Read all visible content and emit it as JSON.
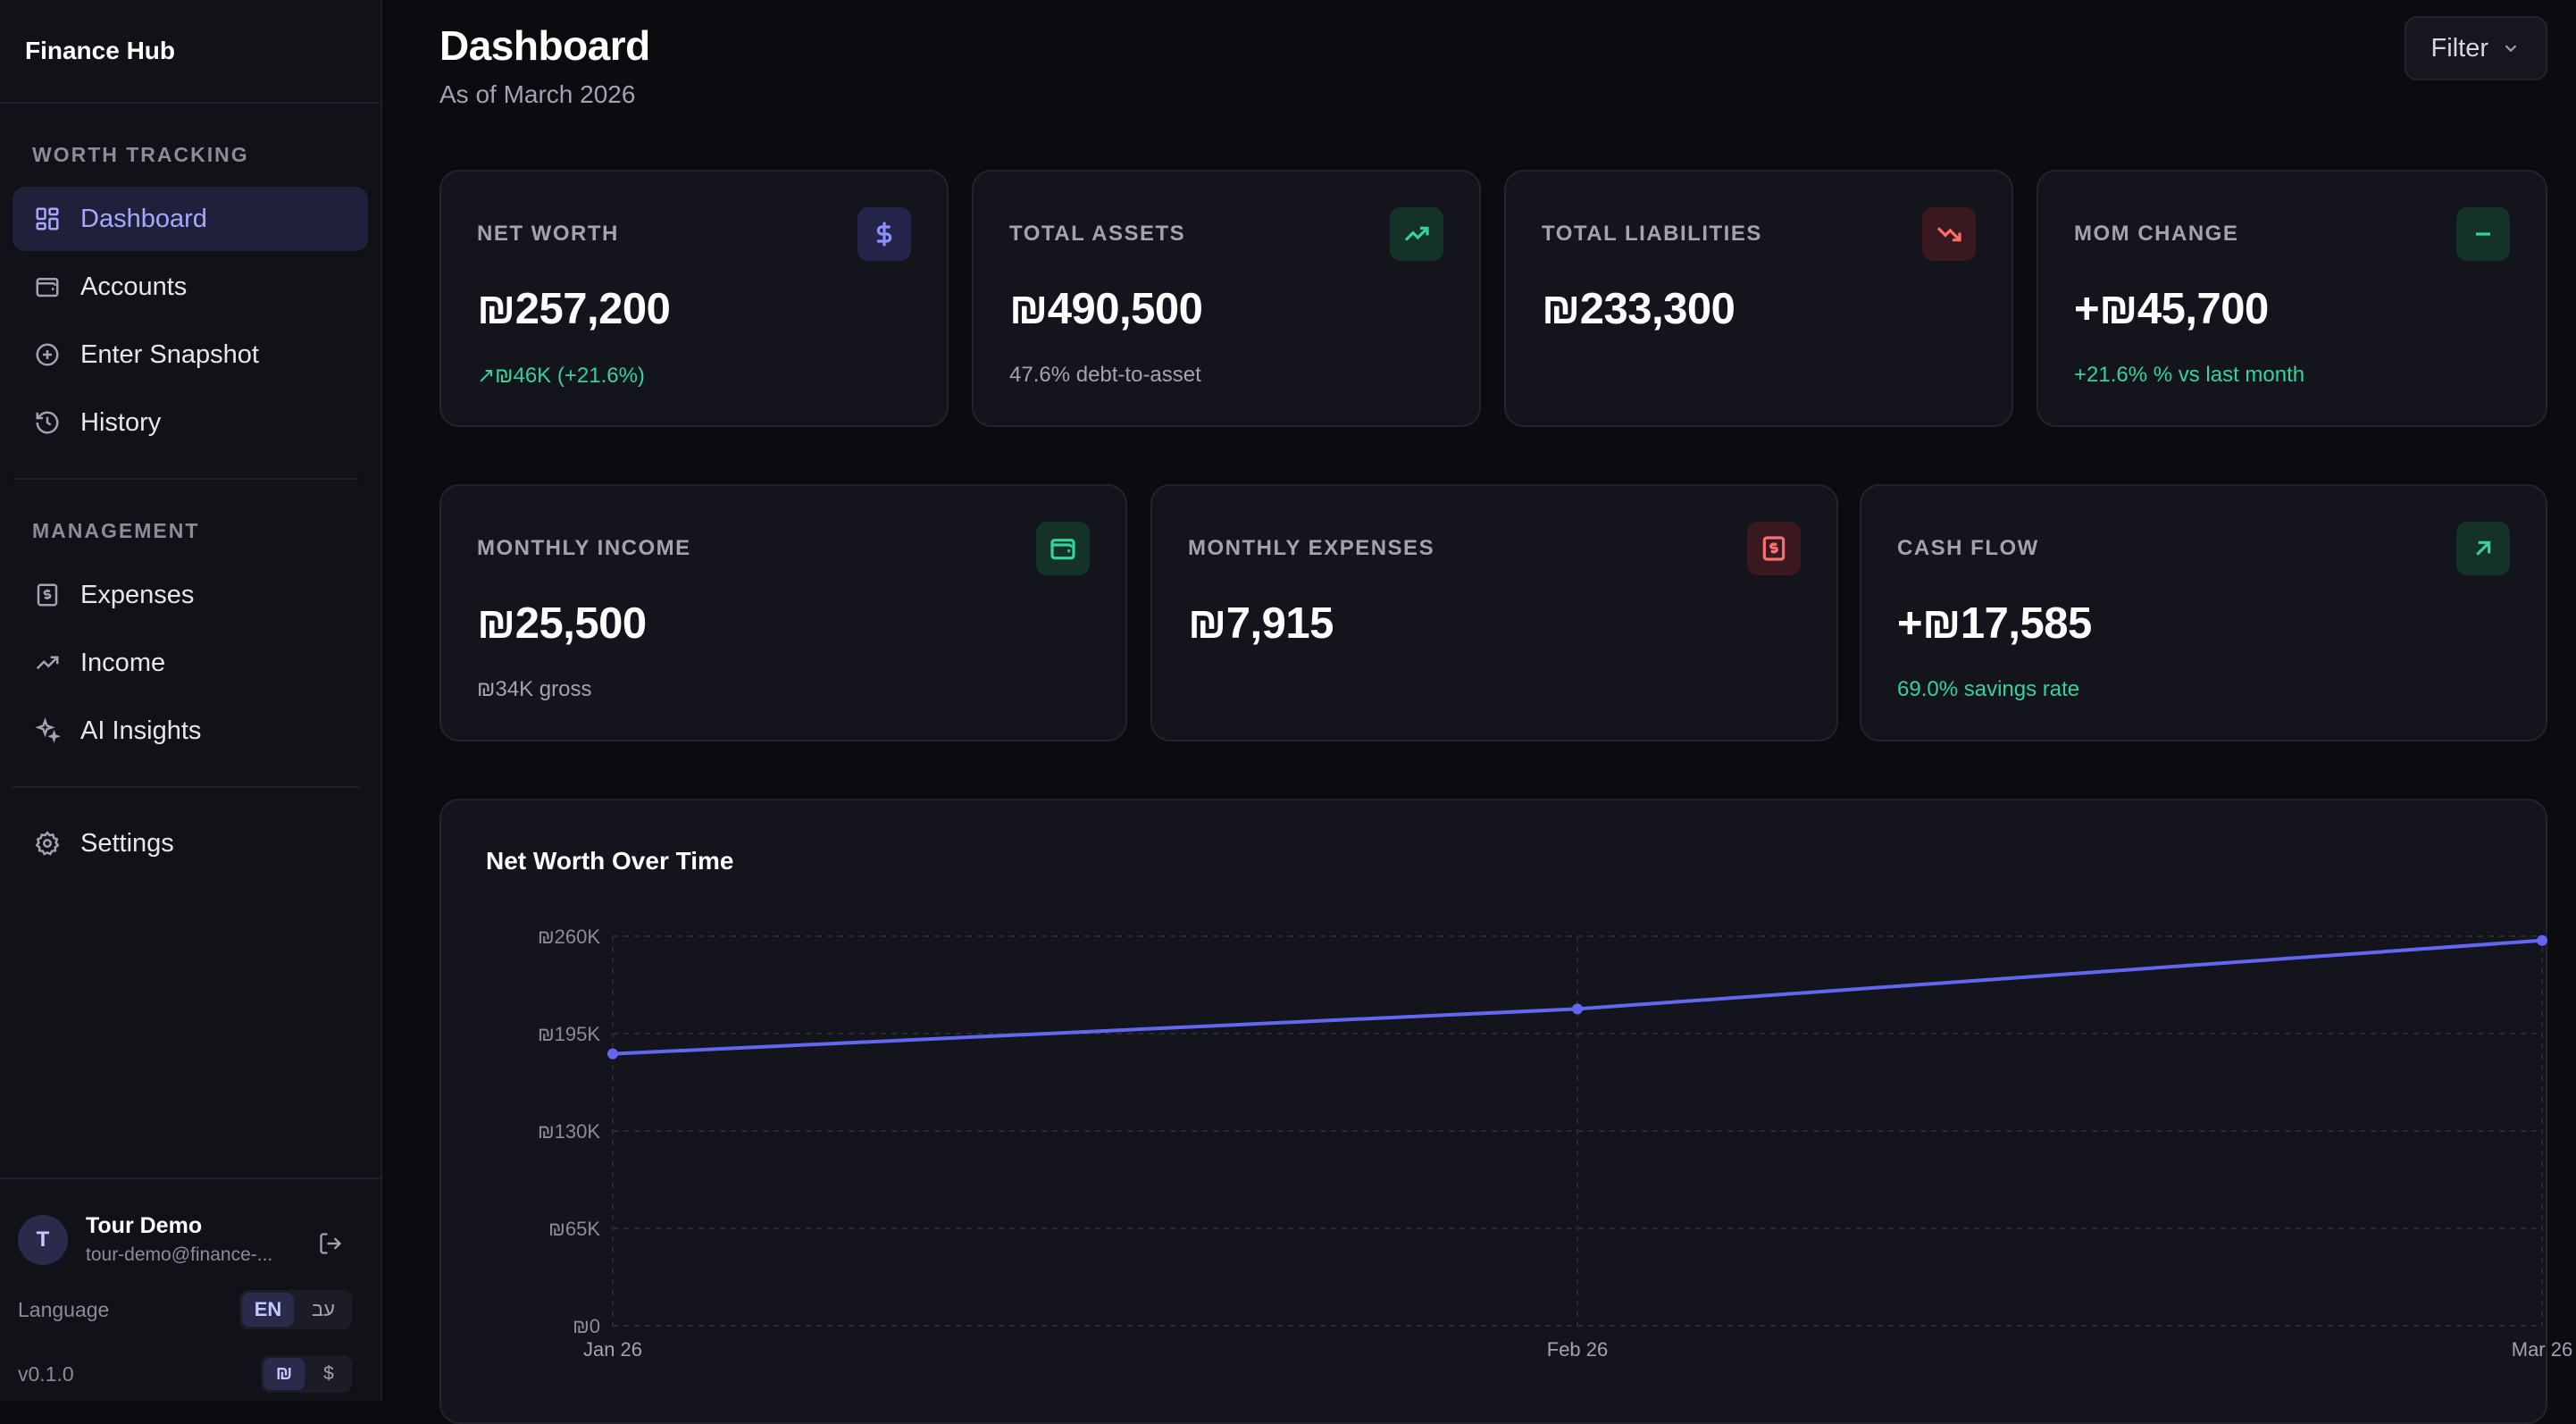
{
  "brand": "Finance Hub",
  "sidebar": {
    "section_worth": "WORTH TRACKING",
    "worth_items": [
      {
        "label": "Dashboard",
        "icon": "grid-icon",
        "active": true
      },
      {
        "label": "Accounts",
        "icon": "wallet-icon"
      },
      {
        "label": "Enter Snapshot",
        "icon": "plus-circle-icon"
      },
      {
        "label": "History",
        "icon": "history-icon"
      }
    ],
    "section_management": "MANAGEMENT",
    "management_items": [
      {
        "label": "Expenses",
        "icon": "receipt-icon"
      },
      {
        "label": "Income",
        "icon": "trending-up-icon"
      },
      {
        "label": "AI Insights",
        "icon": "sparkles-icon"
      }
    ],
    "settings_label": "Settings",
    "user": {
      "initial": "T",
      "name": "Tour Demo",
      "email": "tour-demo@finance-..."
    },
    "language_label": "Language",
    "languages": [
      "EN",
      "עב"
    ],
    "language_selected": "EN",
    "version": "v0.1.0",
    "currencies": [
      "₪",
      "$"
    ],
    "currency_selected": "₪"
  },
  "header": {
    "title": "Dashboard",
    "subtitle": "As of March 2026",
    "filter_label": "Filter"
  },
  "stats_top": [
    {
      "label": "NET WORTH",
      "value": "₪257,200",
      "note": "↗₪46K (+21.6%)",
      "note_color": "green",
      "icon": "dollar-icon",
      "accent": "#8b8fff"
    },
    {
      "label": "TOTAL ASSETS",
      "value": "₪490,500",
      "note": "47.6% debt-to-asset",
      "note_color": "muted",
      "icon": "trending-up-icon",
      "accent": "#34d399"
    },
    {
      "label": "TOTAL LIABILITIES",
      "value": "₪233,300",
      "note": "",
      "note_color": "muted",
      "icon": "trending-down-icon",
      "accent": "#f87171"
    },
    {
      "label": "MOM CHANGE",
      "value": "+₪45,700",
      "note": "+21.6% % vs last month",
      "note_color": "green",
      "icon": "minus-icon",
      "accent": "#34d399"
    }
  ],
  "stats_bottom": [
    {
      "label": "MONTHLY INCOME",
      "value": "₪25,500",
      "note": "₪34K gross",
      "note_color": "muted",
      "icon": "wallet-icon",
      "accent": "#34d399"
    },
    {
      "label": "MONTHLY EXPENSES",
      "value": "₪7,915",
      "note": "",
      "note_color": "muted",
      "icon": "receipt-icon",
      "accent": "#f87171"
    },
    {
      "label": "CASH FLOW",
      "value": "+₪17,585",
      "note": "69.0% savings rate",
      "note_color": "green",
      "icon": "arrow-up-right-icon",
      "accent": "#34d399"
    }
  ],
  "chart_data": {
    "type": "line",
    "title": "Net Worth Over Time",
    "categories": [
      "Jan 26",
      "Feb 26",
      "Mar 26"
    ],
    "series": [
      {
        "values": [
          181500,
          211500,
          257200
        ]
      }
    ],
    "ylim": [
      0,
      260000
    ],
    "yticks": [
      0,
      65000,
      130000,
      195000,
      260000
    ],
    "ytick_labels": [
      "₪0",
      "₪65K",
      "₪130K",
      "₪195K",
      "₪260K"
    ],
    "grid": true,
    "line_color": "#6366f1"
  }
}
